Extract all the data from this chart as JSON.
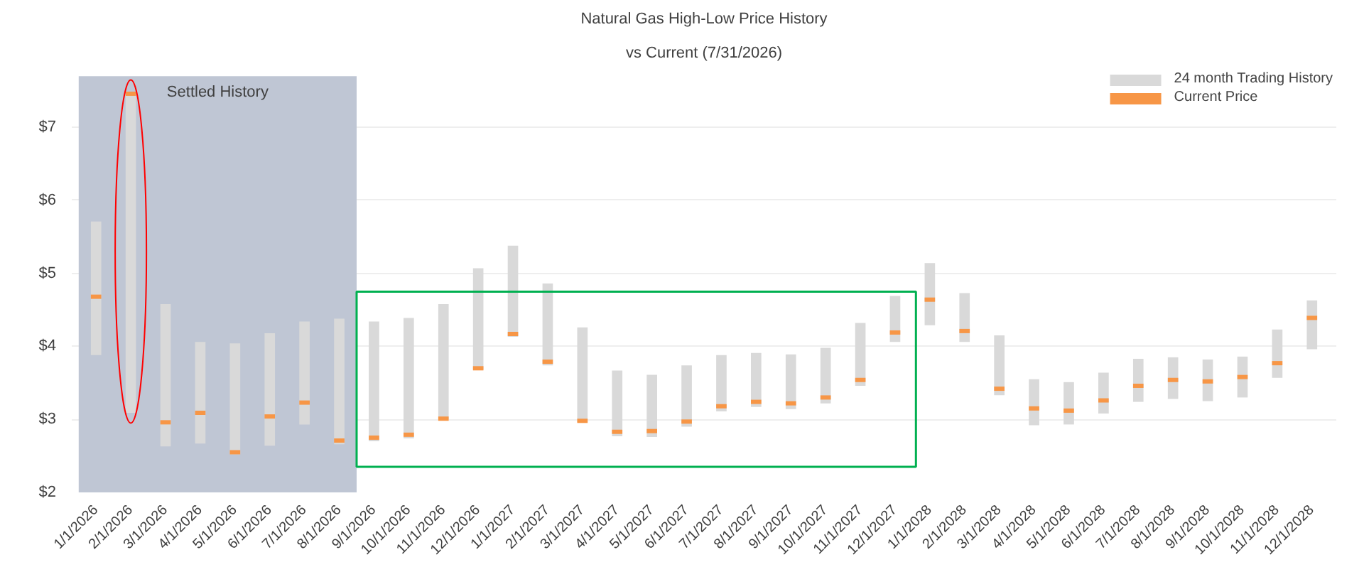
{
  "chart_data": {
    "type": "bar",
    "title": "Natural Gas High-Low Price History",
    "subtitle": "vs Current (7/31/2026)",
    "categories": [
      "1/1/2026",
      "2/1/2026",
      "3/1/2026",
      "4/1/2026",
      "5/1/2026",
      "6/1/2026",
      "7/1/2026",
      "8/1/2026",
      "9/1/2026",
      "10/1/2026",
      "11/1/2026",
      "12/1/2026",
      "1/1/2027",
      "2/1/2027",
      "3/1/2027",
      "4/1/2027",
      "5/1/2027",
      "6/1/2027",
      "7/1/2027",
      "8/1/2027",
      "9/1/2027",
      "10/1/2027",
      "11/1/2027",
      "12/1/2027",
      "1/1/2028",
      "2/1/2028",
      "3/1/2028",
      "4/1/2028",
      "5/1/2028",
      "6/1/2028",
      "7/1/2028",
      "8/1/2028",
      "9/1/2028",
      "10/1/2028",
      "11/1/2028",
      "12/1/2028"
    ],
    "series": [
      {
        "name": "24 month Trading History",
        "color": "#d9d9d9",
        "base": [
          3.88,
          3.09,
          2.63,
          2.67,
          2.52,
          2.64,
          2.93,
          2.66,
          2.7,
          2.74,
          3.0,
          3.68,
          4.13,
          3.74,
          2.96,
          2.77,
          2.76,
          2.9,
          3.11,
          3.17,
          3.14,
          3.22,
          3.46,
          4.06,
          4.29,
          4.06,
          3.33,
          2.92,
          2.93,
          3.08,
          3.24,
          3.28,
          3.25,
          3.3,
          3.57,
          3.96
        ],
        "values": [
          1.83,
          4.37,
          1.95,
          1.39,
          1.52,
          1.54,
          1.41,
          1.72,
          1.64,
          1.65,
          1.58,
          1.39,
          1.25,
          1.12,
          1.3,
          0.9,
          0.85,
          0.84,
          0.77,
          0.74,
          0.75,
          0.76,
          0.86,
          0.63,
          0.85,
          0.67,
          0.82,
          0.63,
          0.58,
          0.56,
          0.59,
          0.57,
          0.57,
          0.56,
          0.66,
          0.67
        ]
      },
      {
        "name": "Current Price",
        "type": "scatter",
        "color": "#f79646",
        "values": [
          4.68,
          7.46,
          2.96,
          3.09,
          2.55,
          3.04,
          3.23,
          2.71,
          2.75,
          2.79,
          3.01,
          3.7,
          4.17,
          3.79,
          2.98,
          2.83,
          2.84,
          2.97,
          3.18,
          3.24,
          3.22,
          3.3,
          3.54,
          4.19,
          4.64,
          4.21,
          3.42,
          3.15,
          3.12,
          3.26,
          3.46,
          3.54,
          3.52,
          3.58,
          3.77,
          4.39
        ]
      }
    ],
    "ylim": [
      2,
      7.8
    ],
    "yticks": [
      {
        "value": 2,
        "label": "$2"
      },
      {
        "value": 3,
        "label": "$3"
      },
      {
        "value": 4,
        "label": "$4"
      },
      {
        "value": 5,
        "label": "$5"
      },
      {
        "value": 6,
        "label": "$6"
      },
      {
        "value": 7,
        "label": "$7"
      }
    ],
    "bands": [
      {
        "axis": "x",
        "from": "1/1/2026",
        "to": "8/1/2026",
        "label": "Settled History",
        "color": "#bfc6d4"
      }
    ],
    "grid": "y",
    "legend": "top right"
  }
}
